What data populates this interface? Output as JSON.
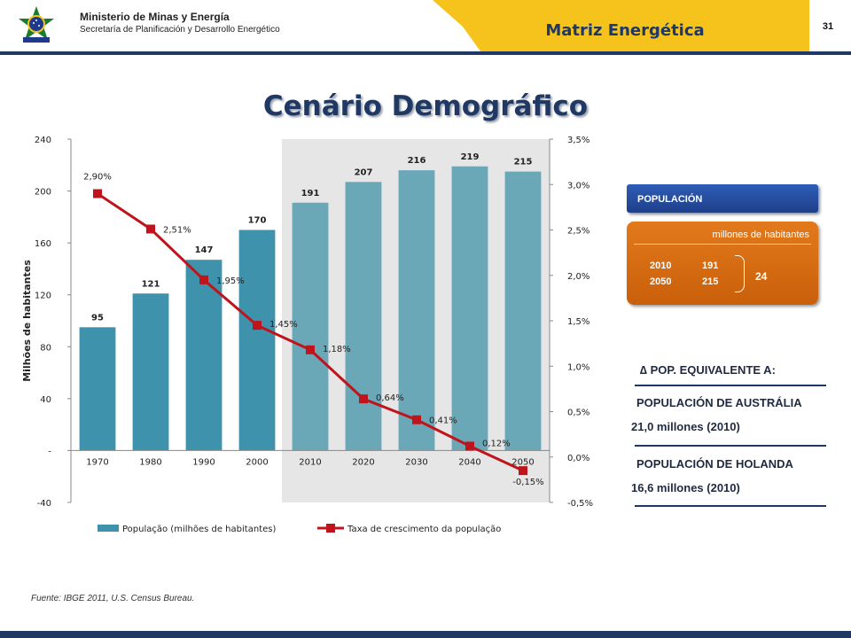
{
  "header": {
    "ministry": "Ministerio de Minas y Energía",
    "secretary": "Secretaría de Planificación y Desarrollo Energético",
    "section": "Matriz Energética",
    "page": "31"
  },
  "title": "Cenário Demográfico",
  "colors": {
    "navy": "#1f3864",
    "gold": "#f5c31c",
    "bar_historic": "#3e92ab",
    "bar_projection": "#6aa7b7",
    "line": "#c0141c",
    "orange": "#e27a1c",
    "blue_label": "#2f5db7"
  },
  "chart_data": {
    "type": "bar",
    "categories": [
      "1970",
      "1980",
      "1990",
      "2000",
      "2010",
      "2020",
      "2030",
      "2040",
      "2050"
    ],
    "series": [
      {
        "name": "População (milhões de habitantes)",
        "type": "bar",
        "axis": "left",
        "values": [
          95,
          121,
          147,
          170,
          191,
          207,
          216,
          219,
          215
        ],
        "labels": [
          "95",
          "121",
          "147",
          "170",
          "191",
          "207",
          "216",
          "219",
          "215"
        ]
      },
      {
        "name": "Taxa de crescimento da população",
        "type": "line",
        "axis": "right",
        "values": [
          2.9,
          2.51,
          1.95,
          1.45,
          1.18,
          0.64,
          0.41,
          0.12,
          -0.15
        ],
        "labels": [
          "2,90%",
          "2,51%",
          "1,95%",
          "1,45%",
          "1,18%",
          "0,64%",
          "0,41%",
          "0,12%",
          "-0,15%"
        ]
      }
    ],
    "ylabel": "Milhões de habitantes",
    "ylim": [
      -40,
      240
    ],
    "y_ticks": [
      "-40",
      "-",
      "40",
      "80",
      "120",
      "160",
      "200",
      "240"
    ],
    "y2lim": [
      -0.5,
      3.5
    ],
    "y2_ticks": [
      "-0,5%",
      "0,0%",
      "0,5%",
      "1,0%",
      "1,5%",
      "2,0%",
      "2,5%",
      "3,0%",
      "3,5%"
    ],
    "projection_shaded_from": "2010",
    "legend_position": "bottom",
    "grid": false
  },
  "footnote": "Fuente: IBGE 2011, U.S. Census Bureau.",
  "sidebar": {
    "pop_title": "POPULACIÓN",
    "unit": "millones de habitantes",
    "rows": [
      {
        "year": "2010",
        "value": "191"
      },
      {
        "year": "2050",
        "value": "215"
      }
    ],
    "difference": "24",
    "equiv_title": "∆ POP. EQUIVALENTE A:",
    "australia_title": "POPULACIÓN DE AUSTRÁLIA",
    "australia_value": "21,0 millones (2010)",
    "holland_title": "POPULACIÓN DE HOLANDA",
    "holland_value": "16,6 millones (2010)"
  }
}
